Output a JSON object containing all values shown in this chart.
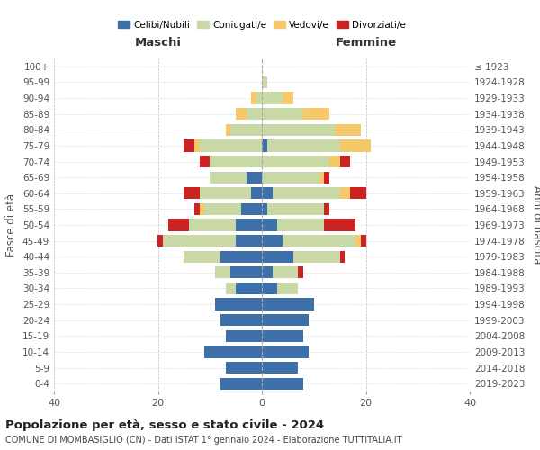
{
  "age_groups": [
    "0-4",
    "5-9",
    "10-14",
    "15-19",
    "20-24",
    "25-29",
    "30-34",
    "35-39",
    "40-44",
    "45-49",
    "50-54",
    "55-59",
    "60-64",
    "65-69",
    "70-74",
    "75-79",
    "80-84",
    "85-89",
    "90-94",
    "95-99",
    "100+"
  ],
  "birth_years": [
    "2019-2023",
    "2014-2018",
    "2009-2013",
    "2004-2008",
    "1999-2003",
    "1994-1998",
    "1989-1993",
    "1984-1988",
    "1979-1983",
    "1974-1978",
    "1969-1973",
    "1964-1968",
    "1959-1963",
    "1954-1958",
    "1949-1953",
    "1944-1948",
    "1939-1943",
    "1934-1938",
    "1929-1933",
    "1924-1928",
    "≤ 1923"
  ],
  "colors": {
    "celibi": "#3d6fa8",
    "coniugati": "#c8d9a5",
    "vedovi": "#f5c96a",
    "divorziati": "#cc2222"
  },
  "males": {
    "celibi": [
      8,
      7,
      11,
      7,
      8,
      9,
      5,
      6,
      8,
      5,
      5,
      4,
      2,
      3,
      0,
      0,
      0,
      0,
      0,
      0,
      0
    ],
    "coniugati": [
      0,
      0,
      0,
      0,
      0,
      0,
      2,
      3,
      7,
      14,
      9,
      7,
      10,
      7,
      10,
      12,
      6,
      3,
      1,
      0,
      0
    ],
    "vedovi": [
      0,
      0,
      0,
      0,
      0,
      0,
      0,
      0,
      0,
      0,
      0,
      1,
      0,
      0,
      0,
      1,
      1,
      2,
      1,
      0,
      0
    ],
    "divorziati": [
      0,
      0,
      0,
      0,
      0,
      0,
      0,
      0,
      0,
      1,
      4,
      1,
      3,
      0,
      2,
      2,
      0,
      0,
      0,
      0,
      0
    ]
  },
  "females": {
    "celibi": [
      8,
      7,
      9,
      8,
      9,
      10,
      3,
      2,
      6,
      4,
      3,
      1,
      2,
      0,
      0,
      1,
      0,
      0,
      0,
      0,
      0
    ],
    "coniugati": [
      0,
      0,
      0,
      0,
      0,
      0,
      4,
      5,
      9,
      14,
      9,
      11,
      13,
      11,
      13,
      14,
      14,
      8,
      4,
      1,
      0
    ],
    "vedovi": [
      0,
      0,
      0,
      0,
      0,
      0,
      0,
      0,
      0,
      1,
      0,
      0,
      2,
      1,
      2,
      6,
      5,
      5,
      2,
      0,
      0
    ],
    "divorziati": [
      0,
      0,
      0,
      0,
      0,
      0,
      0,
      1,
      1,
      1,
      6,
      1,
      3,
      1,
      2,
      0,
      0,
      0,
      0,
      0,
      0
    ]
  },
  "title": "Popolazione per età, sesso e stato civile - 2024",
  "subtitle": "COMUNE DI MOMBASIGLIO (CN) - Dati ISTAT 1° gennaio 2024 - Elaborazione TUTTITALIA.IT",
  "xlabel_left": "Maschi",
  "xlabel_right": "Femmine",
  "ylabel_left": "Fasce di età",
  "ylabel_right": "Anni di nascita",
  "xlim": 40,
  "legend_labels": [
    "Celibi/Nubili",
    "Coniugati/e",
    "Vedovi/e",
    "Divorziati/e"
  ],
  "background_color": "#ffffff"
}
